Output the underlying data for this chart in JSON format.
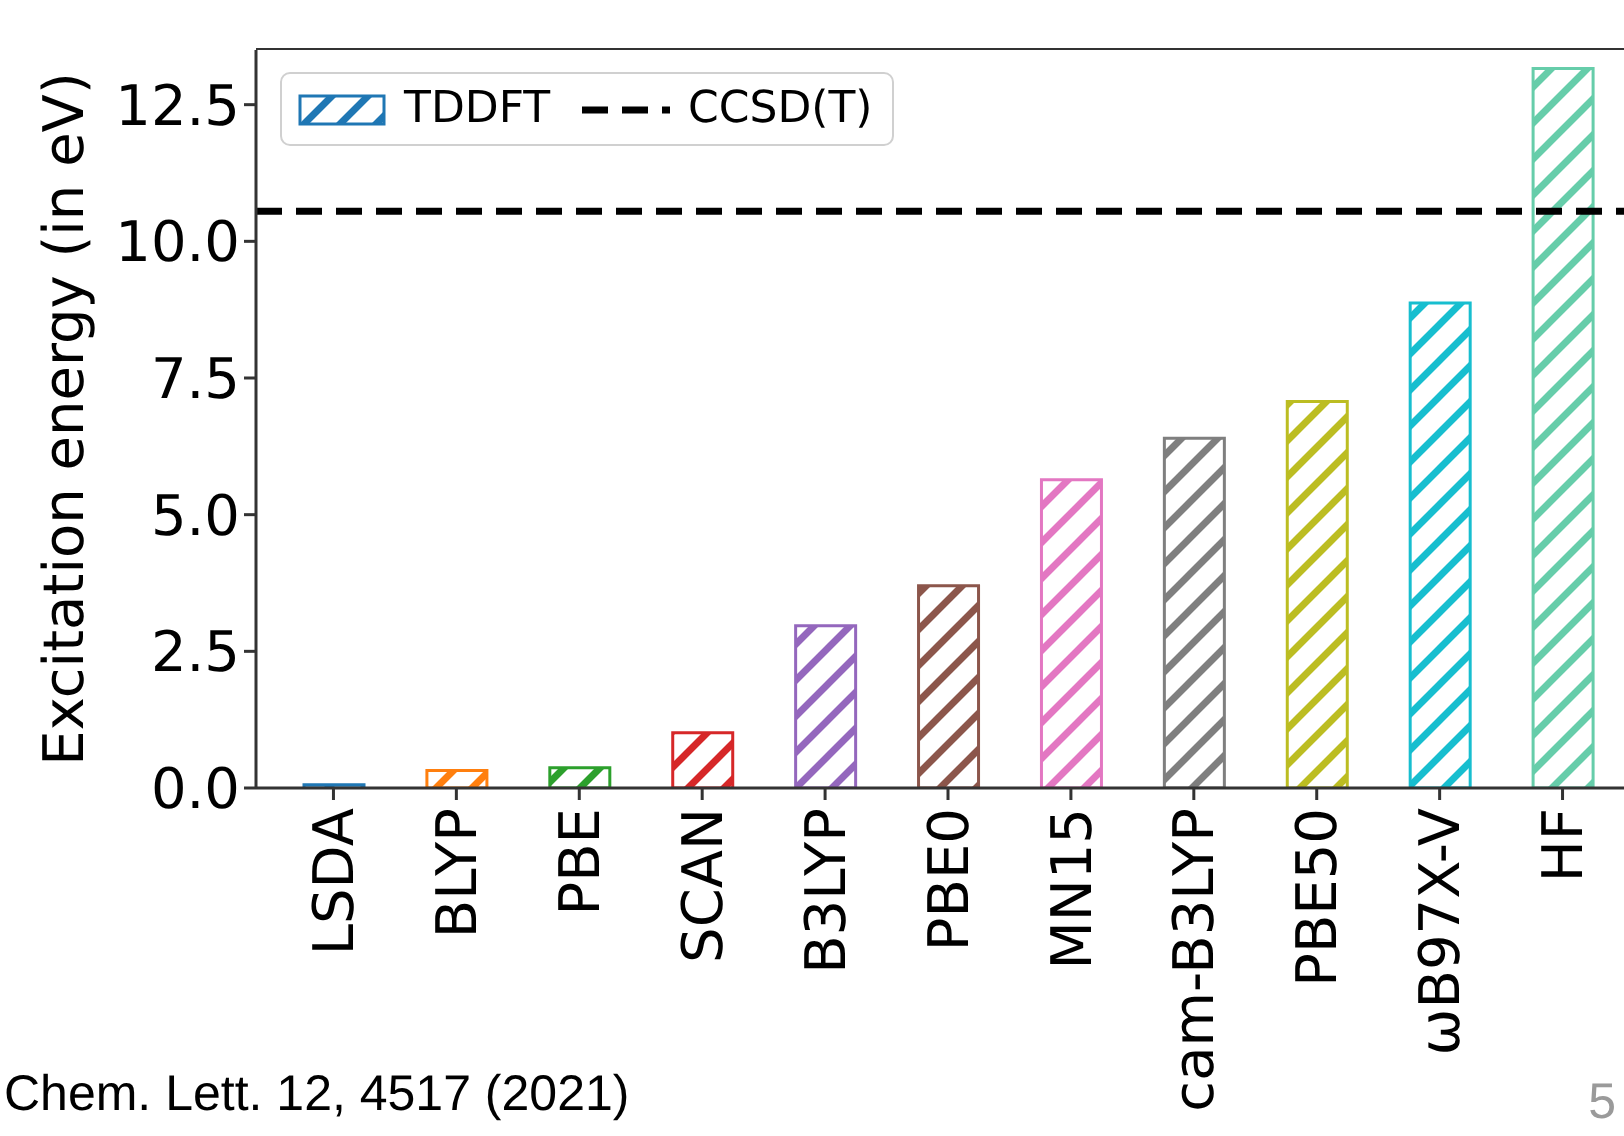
{
  "chart_data": {
    "type": "bar",
    "ylabel": "Excitation energy (in eV)",
    "categories": [
      "LSDA",
      "BLYP",
      "PBE",
      "SCAN",
      "B3LYP",
      "PBE0",
      "MN15",
      "cam-B3LYP",
      "PBE50",
      "ωB97X-V",
      "HF"
    ],
    "series": [
      {
        "name": "TDDFT",
        "colors": [
          "#1f77b4",
          "#ff7f0e",
          "#2ca02c",
          "#d62728",
          "#9467bd",
          "#8c564b",
          "#e377c2",
          "#7f7f7f",
          "#bcbd22",
          "#17becf",
          "#66cdaa"
        ],
        "values": [
          0.06,
          0.32,
          0.37,
          1.01,
          2.97,
          3.7,
          5.64,
          6.4,
          7.07,
          8.87,
          13.16
        ]
      }
    ],
    "ylim": [
      0,
      13.5
    ],
    "yticks": [
      {
        "value": 0,
        "label": "0.0"
      },
      2.5,
      {
        "value": 5,
        "label": "5.0"
      },
      7.5,
      {
        "value": 10,
        "label": "10.0"
      },
      12.5
    ],
    "ref_lines": [
      {
        "axis": "y",
        "value": 10.55,
        "label": "CCSD(T)",
        "color": "#000000",
        "line_style": "dashed"
      }
    ],
    "legend": "top left",
    "annotations": [
      "Chem. Lett. 12, 4517 (2021)",
      "5"
    ]
  }
}
